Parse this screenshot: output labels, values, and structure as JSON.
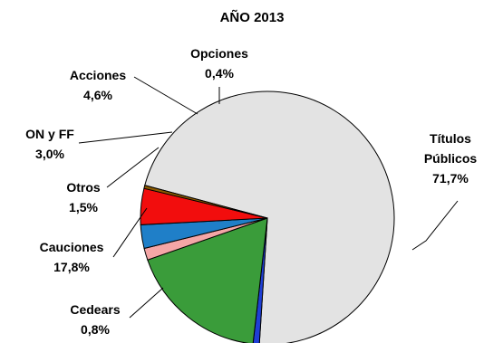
{
  "chart_data": {
    "type": "pie",
    "title": "AÑO 2013",
    "slices": [
      {
        "name": "Títulos Públicos",
        "label_lines": [
          "Títulos",
          "Públicos"
        ],
        "value": 71.7,
        "value_label": "71,7%",
        "color": "#e3e3e3"
      },
      {
        "name": "Cedears",
        "label_lines": [
          "Cedears"
        ],
        "value": 0.8,
        "value_label": "0,8%",
        "color": "#1f3fd6"
      },
      {
        "name": "Cauciones",
        "label_lines": [
          "Cauciones"
        ],
        "value": 17.8,
        "value_label": "17,8%",
        "color": "#3a9c3a"
      },
      {
        "name": "Otros",
        "label_lines": [
          "Otros"
        ],
        "value": 1.5,
        "value_label": "1,5%",
        "color": "#f4a6a6"
      },
      {
        "name": "ON y FF",
        "label_lines": [
          "ON y FF"
        ],
        "value": 3.0,
        "value_label": "3,0%",
        "color": "#1f7fc8"
      },
      {
        "name": "Acciones",
        "label_lines": [
          "Acciones"
        ],
        "value": 4.6,
        "value_label": "4,6%",
        "color": "#f20d0d"
      },
      {
        "name": "Opciones",
        "label_lines": [
          "Opciones"
        ],
        "value": 0.4,
        "value_label": "0,4%",
        "color": "#8a5a00"
      }
    ]
  }
}
